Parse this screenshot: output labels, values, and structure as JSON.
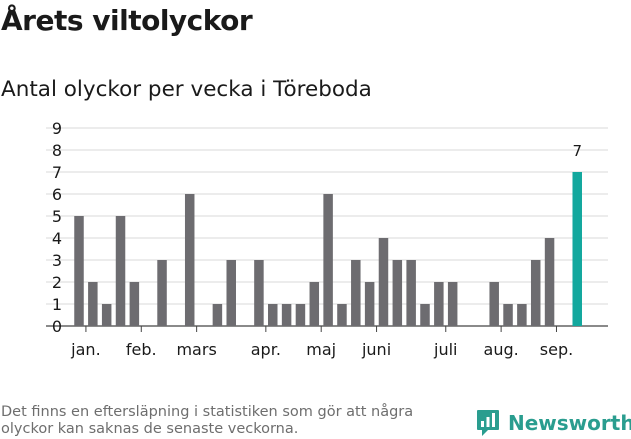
{
  "header": {
    "title": "Årets viltolyckor",
    "subtitle": "Antal olyckor per vecka i Töreboda"
  },
  "footer": {
    "note": "Det finns en eftersläpning i statistiken som gör att några olyckor kan saknas de senaste veckorna.",
    "brand": "Newsworthy"
  },
  "colors": {
    "bar": "#6d6c70",
    "highlight": "#13a89e",
    "grid": "#d9d9d9",
    "brand": "#2a9d8f"
  },
  "chart_data": {
    "type": "bar",
    "title": "",
    "xlabel": "",
    "ylabel": "",
    "ylim": [
      0,
      9
    ],
    "yticks": [
      0,
      1,
      2,
      3,
      4,
      5,
      6,
      7,
      8,
      9
    ],
    "grid": true,
    "legend": "none",
    "values": [
      5,
      2,
      1,
      5,
      2,
      0,
      3,
      0,
      6,
      0,
      1,
      3,
      0,
      3,
      1,
      1,
      1,
      2,
      6,
      1,
      3,
      2,
      4,
      3,
      3,
      1,
      2,
      2,
      0,
      0,
      2,
      1,
      1,
      3,
      4,
      0,
      7
    ],
    "highlight_index": 36,
    "highlight_label": "7",
    "month_labels": [
      {
        "label": "jan.",
        "bar": 0.5
      },
      {
        "label": "feb.",
        "bar": 4.5
      },
      {
        "label": "mars",
        "bar": 8.5
      },
      {
        "label": "apr.",
        "bar": 13.5
      },
      {
        "label": "maj",
        "bar": 17.5
      },
      {
        "label": "juni",
        "bar": 21.5
      },
      {
        "label": "juli",
        "bar": 26.5
      },
      {
        "label": "aug.",
        "bar": 30.5
      },
      {
        "label": "sep.",
        "bar": 34.5
      }
    ]
  }
}
